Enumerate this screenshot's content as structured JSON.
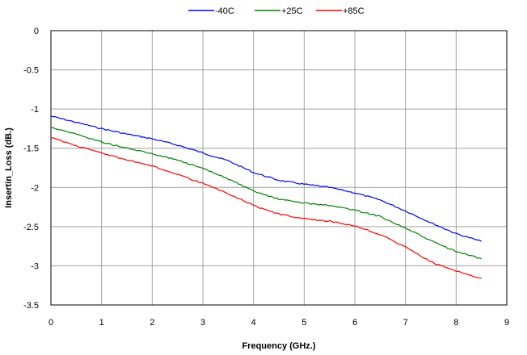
{
  "chart_data": {
    "type": "line",
    "xlabel": "Frequency (GHz.)",
    "ylabel": "Insertin_Loss (dB.)",
    "xlim": [
      0,
      9
    ],
    "ylim": [
      -3.5,
      0
    ],
    "x_ticks": [
      "0",
      "1",
      "2",
      "3",
      "4",
      "5",
      "6",
      "7",
      "8",
      "9"
    ],
    "y_ticks": [
      "0",
      "-0.5",
      "-1",
      "-1.5",
      "-2",
      "-2.5",
      "-3",
      "-3.5"
    ],
    "grid": true,
    "legend_position": "top",
    "x": [
      0,
      0.5,
      1,
      1.5,
      2,
      2.5,
      3,
      3.5,
      4,
      4.5,
      5,
      5.5,
      6,
      6.5,
      7,
      7.5,
      8,
      8.5
    ],
    "series": [
      {
        "name": "-40C",
        "color": "#0000ff",
        "values": [
          -1.09,
          -1.17,
          -1.25,
          -1.32,
          -1.38,
          -1.46,
          -1.56,
          -1.66,
          -1.81,
          -1.91,
          -1.96,
          -2.0,
          -2.07,
          -2.16,
          -2.3,
          -2.45,
          -2.59,
          -2.69
        ]
      },
      {
        "name": "+25C",
        "color": "#008000",
        "values": [
          -1.23,
          -1.32,
          -1.42,
          -1.5,
          -1.57,
          -1.65,
          -1.76,
          -1.89,
          -2.05,
          -2.15,
          -2.2,
          -2.23,
          -2.29,
          -2.37,
          -2.52,
          -2.68,
          -2.82,
          -2.91
        ]
      },
      {
        "name": "+85C",
        "color": "#ff0000",
        "values": [
          -1.36,
          -1.47,
          -1.56,
          -1.65,
          -1.73,
          -1.83,
          -1.95,
          -2.08,
          -2.23,
          -2.34,
          -2.4,
          -2.43,
          -2.49,
          -2.6,
          -2.76,
          -2.95,
          -3.07,
          -3.16
        ]
      }
    ]
  }
}
